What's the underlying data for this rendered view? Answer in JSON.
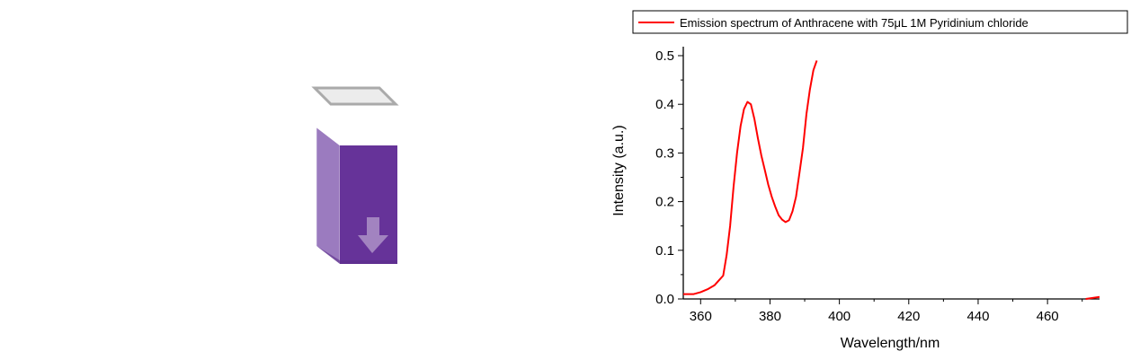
{
  "illustration": {
    "subject": "cuvette",
    "body_color": "#663399",
    "side_color": "#8a64b4",
    "arrow_color": "#a88cc4",
    "lid_color": "#aaaaaa"
  },
  "chart_data": {
    "type": "line",
    "title": "",
    "xlabel": "Wavelength/nm",
    "ylabel": "Intensity (a.u.)",
    "xlim": [
      355,
      475
    ],
    "ylim": [
      0,
      0.5
    ],
    "xticks": [
      360,
      380,
      400,
      420,
      440,
      460
    ],
    "yticks": [
      0.0,
      0.1,
      0.2,
      0.3,
      0.4,
      0.5
    ],
    "xtick_labels": [
      "360",
      "380",
      "400",
      "420",
      "440",
      "460"
    ],
    "ytick_labels": [
      "0.0",
      "0.1",
      "0.2",
      "0.3",
      "0.4",
      "0.5"
    ],
    "legend_position": "top",
    "series": [
      {
        "name": "Emission spectrum of Anthracene with 75μL 1M Pyridinium chloride",
        "color": "#ff0000",
        "segments": [
          {
            "x": [
              355,
              358,
              360,
              362,
              364,
              365.5,
              366.5,
              367.5,
              368.5,
              369.5,
              370.5,
              371.5,
              372.5,
              373.5,
              374.5,
              375.5,
              376.5,
              377.5,
              378.5,
              379.5,
              380.5,
              381.5,
              382.5,
              383.5,
              384.5,
              385.5,
              386.5,
              387.5,
              388.5,
              389.5,
              390.5,
              391.5,
              392.5,
              393.5
            ],
            "y": [
              0.01,
              0.01,
              0.014,
              0.02,
              0.028,
              0.04,
              0.048,
              0.09,
              0.15,
              0.23,
              0.3,
              0.355,
              0.39,
              0.405,
              0.4,
              0.37,
              0.33,
              0.295,
              0.265,
              0.235,
              0.21,
              0.19,
              0.172,
              0.163,
              0.158,
              0.162,
              0.18,
              0.21,
              0.26,
              0.31,
              0.38,
              0.43,
              0.47,
              0.49
            ]
          },
          {
            "x": [
              471,
              473,
              475
            ],
            "y": [
              0.0,
              0.002,
              0.004
            ]
          }
        ]
      }
    ]
  }
}
